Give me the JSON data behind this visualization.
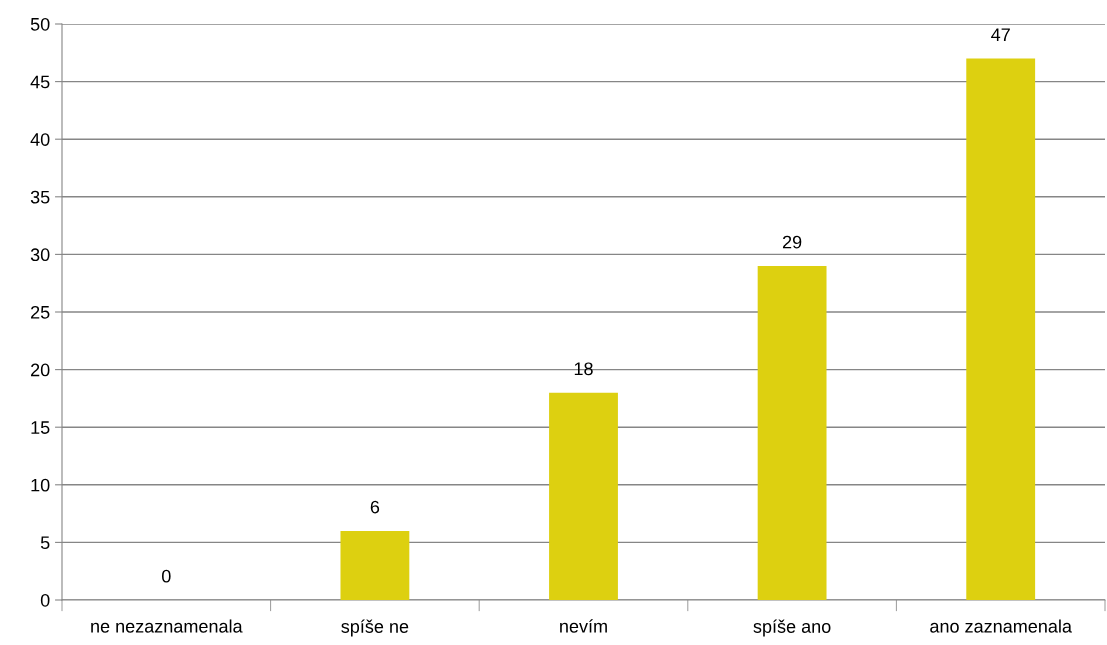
{
  "chart_data": {
    "type": "bar",
    "categories": [
      "ne nezaznamenala",
      "spíše ne",
      "nevím",
      "spíše ano",
      "ano zaznamenala"
    ],
    "values": [
      0,
      6,
      18,
      29,
      47
    ],
    "color": "#ddd010",
    "ylim": [
      0,
      50
    ],
    "yticks": [
      0,
      5,
      10,
      15,
      20,
      25,
      30,
      35,
      40,
      45,
      50
    ],
    "grid": "y",
    "data_labels": true
  }
}
